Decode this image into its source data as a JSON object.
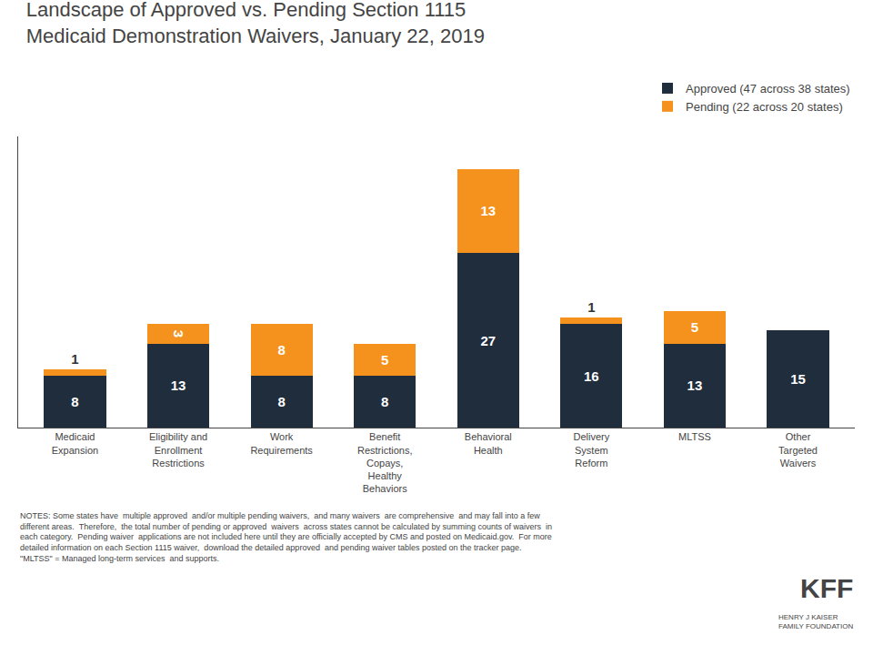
{
  "chart_data": {
    "type": "bar",
    "stacked": true,
    "title": "Landscape of Approved vs. Pending Section 1115\nMedicaid Demonstration Waivers, January 22, 2019",
    "categories": [
      "Medicaid\nExpansion",
      "Eligibility and\nEnrollment\nRestrictions",
      "Work\nRequirements",
      "Benefit\nRestrictions,\nCopays,\nHealthy\nBehaviors",
      "Behavioral\nHealth",
      "Delivery\nSystem\nReform",
      "MLTSS",
      "Other\nTargeted\nWaivers"
    ],
    "series": [
      {
        "name": "Approved (47 across 38 states)",
        "color": "#1f2d3d",
        "values": [
          8,
          13,
          8,
          8,
          27,
          16,
          13,
          15
        ]
      },
      {
        "name": "Pending (22 across 20 states)",
        "color": "#f5921e",
        "values": [
          1,
          3,
          8,
          5,
          13,
          1,
          5,
          0
        ]
      }
    ],
    "ylim": [
      0,
      45
    ],
    "grid": false,
    "legend": "upper right",
    "data_labels": true,
    "tick_labels": "x",
    "annotations": [
      "NOTES: Some states have  multiple approved  and/or multiple pending waivers,  and many waivers  are comprehensive  and may fall into a few\ndifferent areas.  Therefore,  the total number of pending or approved  waivers  across states cannot be calculated by summing counts of waivers  in\neach category.  Pending waiver  applications are not included here until they are officially accepted by CMS and posted on Medicaid.gov.  For more\ndetailed information on each Section 1115 waiver,  download the detailed approved  and pending waiver tables posted on the tracker page.\n\"MLTSS\" = Managed long-term services  and supports.",
      "KFF",
      "HENRY J KAISER\nFAMILY FOUNDATION"
    ]
  }
}
